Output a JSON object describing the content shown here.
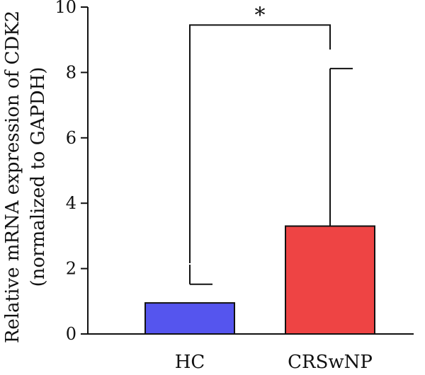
{
  "chart_data": {
    "type": "bar",
    "categories": [
      "HC",
      "CRSwNP"
    ],
    "values": [
      0.95,
      3.3
    ],
    "error_upper": [
      1.52,
      8.12
    ],
    "error_stem_lower": [
      2.12,
      3.3
    ],
    "ylabel_line1": "Relative mRNA expression of CDK2",
    "ylabel_line2": "(normalized to GAPDH)",
    "ylim": [
      0,
      10
    ],
    "yticks": [
      "0",
      "2",
      "4",
      "6",
      "8",
      "10"
    ],
    "significance": {
      "label": "*",
      "y": 9.45,
      "drop_to": 8.7
    },
    "grid": false,
    "colors": [
      "#5555ee",
      "#ee4444"
    ]
  }
}
